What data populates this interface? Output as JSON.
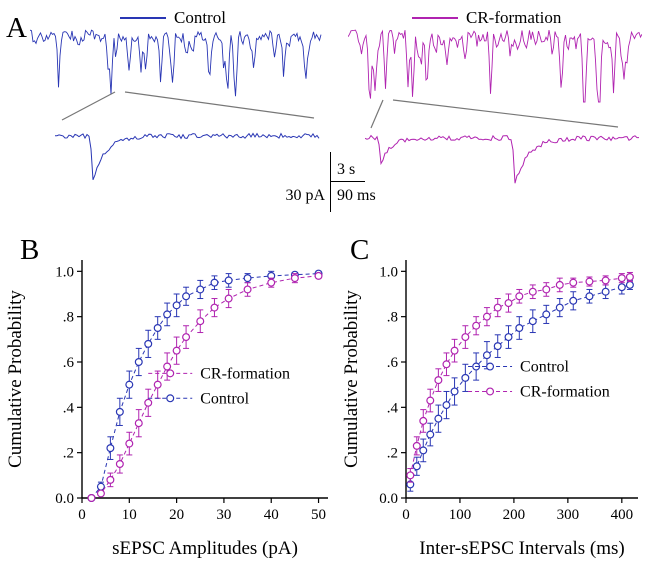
{
  "figure": {
    "panel_a": {
      "label": "A",
      "legend": [
        {
          "label": "Control",
          "color": "#2936b4"
        },
        {
          "label": "CR-formation",
          "color": "#b023b0"
        }
      ],
      "scalebars": {
        "time": "3 s",
        "amplitude": "30 pA",
        "zoom_time": "90 ms"
      }
    },
    "panel_b": {
      "label": "B"
    },
    "panel_c": {
      "label": "C"
    }
  },
  "chart_data": [
    {
      "type": "line",
      "panel": "B",
      "title": "",
      "xlabel": "sEPSC Amplitudes (pA)",
      "ylabel": "Cumulative Probability",
      "xlim": [
        0,
        52
      ],
      "ylim": [
        0,
        1.05
      ],
      "xticks": [
        0,
        10,
        20,
        30,
        40,
        50
      ],
      "yticks": [
        0,
        0.2,
        0.4,
        0.6,
        0.8,
        1.0
      ],
      "ytick_labels": [
        "0.0",
        ".2",
        ".4",
        ".6",
        ".8",
        "1.0"
      ],
      "legend": [
        "CR-formation",
        "Control"
      ],
      "legend_pos": [
        [
          14,
          0.55
        ],
        [
          14,
          0.44
        ]
      ],
      "series": [
        {
          "name": "Control",
          "color": "#2936b4",
          "x": [
            2,
            4,
            6,
            8,
            10,
            12,
            14,
            16,
            18,
            20,
            22,
            25,
            28,
            31,
            35,
            40,
            45,
            50
          ],
          "y": [
            0.0,
            0.05,
            0.22,
            0.38,
            0.5,
            0.6,
            0.68,
            0.75,
            0.81,
            0.85,
            0.89,
            0.92,
            0.95,
            0.96,
            0.97,
            0.98,
            0.985,
            0.99
          ],
          "err": [
            0,
            0.02,
            0.05,
            0.06,
            0.06,
            0.06,
            0.06,
            0.05,
            0.05,
            0.05,
            0.04,
            0.04,
            0.03,
            0.03,
            0.02,
            0.02,
            0.01,
            0.01
          ]
        },
        {
          "name": "CR-formation",
          "color": "#b023b0",
          "x": [
            2,
            4,
            6,
            8,
            10,
            12,
            14,
            16,
            18,
            20,
            22,
            25,
            28,
            31,
            35,
            40,
            45,
            50
          ],
          "y": [
            0.0,
            0.02,
            0.08,
            0.15,
            0.24,
            0.33,
            0.42,
            0.5,
            0.58,
            0.65,
            0.71,
            0.78,
            0.84,
            0.88,
            0.92,
            0.95,
            0.97,
            0.98
          ],
          "err": [
            0,
            0.01,
            0.03,
            0.04,
            0.05,
            0.06,
            0.06,
            0.06,
            0.06,
            0.06,
            0.05,
            0.05,
            0.04,
            0.04,
            0.03,
            0.02,
            0.02,
            0.01
          ]
        }
      ]
    },
    {
      "type": "line",
      "panel": "C",
      "title": "",
      "xlabel": "Inter-sEPSC Intervals (ms)",
      "ylabel": "Cumulative Probability",
      "xlim": [
        0,
        430
      ],
      "ylim": [
        0,
        1.05
      ],
      "xticks": [
        0,
        100,
        200,
        300,
        400
      ],
      "yticks": [
        0,
        0.2,
        0.4,
        0.6,
        0.8,
        1.0
      ],
      "ytick_labels": [
        "0.0",
        ".2",
        ".4",
        ".6",
        ".8",
        "1.0"
      ],
      "legend": [
        "Control",
        "CR-formation"
      ],
      "legend_pos": [
        [
          115,
          0.58
        ],
        [
          115,
          0.47
        ]
      ],
      "series": [
        {
          "name": "Control",
          "color": "#2936b4",
          "x": [
            8,
            20,
            32,
            45,
            60,
            75,
            90,
            110,
            130,
            150,
            170,
            190,
            210,
            235,
            260,
            285,
            310,
            340,
            370,
            400,
            415
          ],
          "y": [
            0.06,
            0.14,
            0.21,
            0.28,
            0.35,
            0.41,
            0.47,
            0.53,
            0.58,
            0.63,
            0.67,
            0.71,
            0.75,
            0.78,
            0.81,
            0.84,
            0.87,
            0.89,
            0.91,
            0.93,
            0.94
          ],
          "err": [
            0.03,
            0.04,
            0.05,
            0.05,
            0.06,
            0.06,
            0.06,
            0.06,
            0.06,
            0.06,
            0.05,
            0.05,
            0.05,
            0.05,
            0.04,
            0.04,
            0.04,
            0.03,
            0.03,
            0.03,
            0.02
          ]
        },
        {
          "name": "CR-formation",
          "color": "#b023b0",
          "x": [
            8,
            20,
            32,
            45,
            60,
            75,
            90,
            110,
            130,
            150,
            170,
            190,
            210,
            235,
            260,
            285,
            310,
            340,
            370,
            400,
            415
          ],
          "y": [
            0.1,
            0.23,
            0.34,
            0.43,
            0.52,
            0.59,
            0.65,
            0.71,
            0.76,
            0.8,
            0.84,
            0.86,
            0.89,
            0.91,
            0.92,
            0.94,
            0.95,
            0.955,
            0.96,
            0.97,
            0.975
          ],
          "err": [
            0.03,
            0.04,
            0.05,
            0.05,
            0.05,
            0.05,
            0.05,
            0.05,
            0.04,
            0.04,
            0.04,
            0.04,
            0.03,
            0.03,
            0.03,
            0.03,
            0.02,
            0.02,
            0.02,
            0.02,
            0.02
          ]
        }
      ]
    }
  ]
}
